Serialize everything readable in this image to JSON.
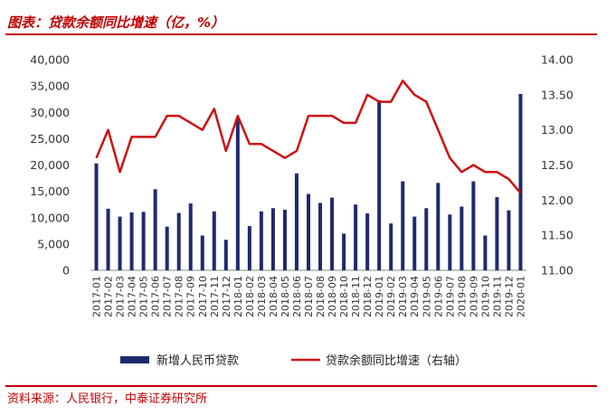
{
  "header": {
    "title": "图表：贷款余额同比增速（亿，%）"
  },
  "footer": {
    "source": "资料来源：人民银行，中泰证券研究所"
  },
  "colors": {
    "bar": "#1f2a6e",
    "line": "#cc1111",
    "accent": "#c00000"
  },
  "chart_data": {
    "type": "bar",
    "categories": [
      "2017-01",
      "2017-02",
      "2017-03",
      "2017-04",
      "2017-05",
      "2017-06",
      "2017-07",
      "2017-08",
      "2017-09",
      "2017-10",
      "2017-11",
      "2017-12",
      "2018-01",
      "2018-02",
      "2018-03",
      "2018-04",
      "2018-05",
      "2018-06",
      "2018-07",
      "2018-08",
      "2018-09",
      "2018-10",
      "2018-11",
      "2018-12",
      "2019-01",
      "2019-02",
      "2019-03",
      "2019-04",
      "2019-05",
      "2019-06",
      "2019-07",
      "2019-08",
      "2019-09",
      "2019-10",
      "2019-11",
      "2019-12",
      "2020-01"
    ],
    "series": [
      {
        "name": "新增人民币贷款",
        "type": "bar",
        "axis": "left",
        "values": [
          20300,
          11700,
          10200,
          11000,
          11100,
          15400,
          8300,
          10900,
          12700,
          6600,
          11200,
          5800,
          29000,
          8400,
          11200,
          11800,
          11500,
          18400,
          14500,
          12800,
          13800,
          6970,
          12500,
          10800,
          32300,
          8900,
          16900,
          10200,
          11800,
          16600,
          10600,
          12100,
          16900,
          6613,
          13900,
          11400,
          33500
        ]
      },
      {
        "name": "贷款余额同比增速（右轴）",
        "type": "line",
        "axis": "right",
        "values": [
          12.6,
          13.0,
          12.4,
          12.9,
          12.9,
          12.9,
          13.2,
          13.2,
          13.1,
          13.0,
          13.3,
          12.7,
          13.2,
          12.8,
          12.8,
          12.7,
          12.6,
          12.7,
          13.2,
          13.2,
          13.2,
          13.1,
          13.1,
          13.5,
          13.4,
          13.4,
          13.7,
          13.5,
          13.4,
          13.0,
          12.6,
          12.4,
          12.5,
          12.4,
          12.4,
          12.3,
          12.1
        ]
      }
    ],
    "y_left": {
      "min": 0,
      "max": 40000,
      "ticks": [
        "0",
        "5,000",
        "10,000",
        "15,000",
        "20,000",
        "25,000",
        "30,000",
        "35,000",
        "40,000"
      ]
    },
    "y_right": {
      "min": 11.0,
      "max": 14.0,
      "ticks": [
        "11.00",
        "11.50",
        "12.00",
        "12.50",
        "13.00",
        "13.50",
        "14.00"
      ]
    },
    "grid": false,
    "legend": "bottom"
  }
}
